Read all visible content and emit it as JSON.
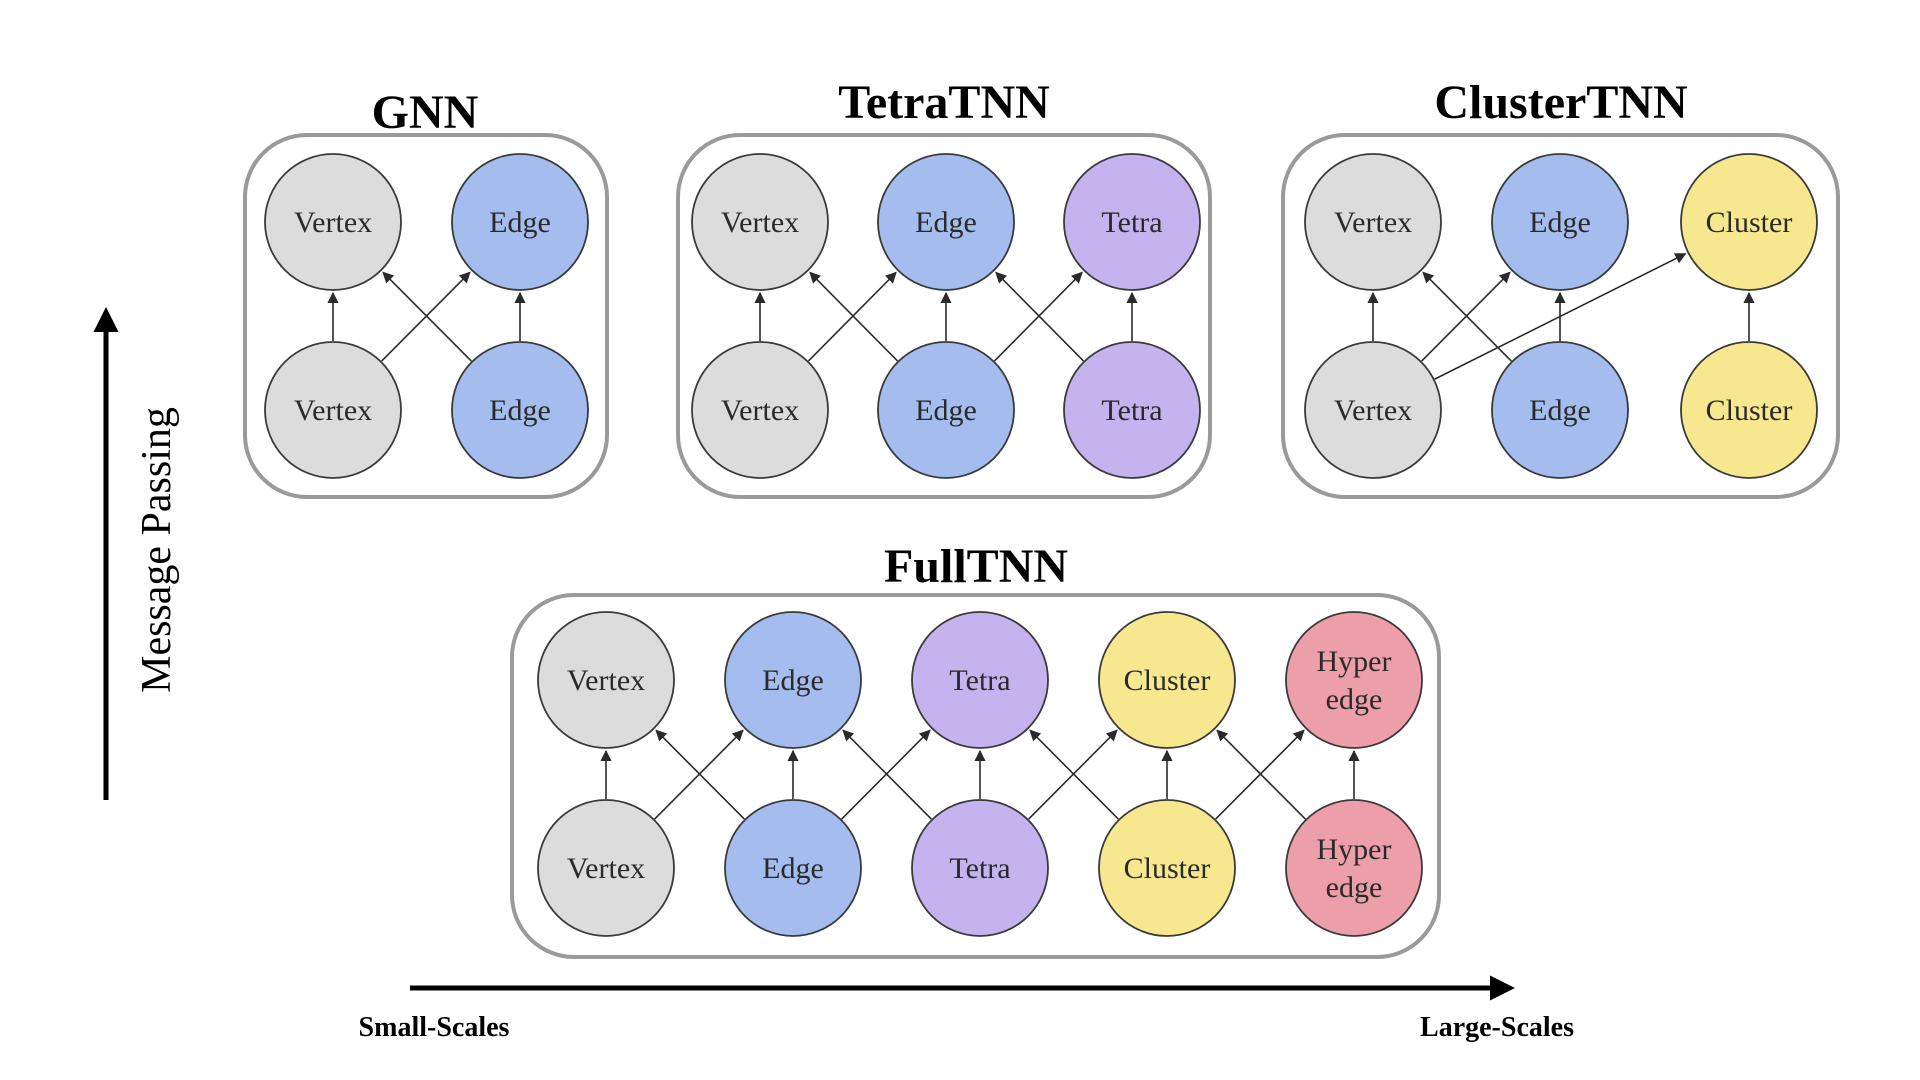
{
  "colors": {
    "Vertex": "#dcdcdc",
    "Edge": "#a4bcee",
    "Tetra": "#c4b3ee",
    "Cluster": "#f7e890",
    "Hyperedge": "#ec9fa8",
    "panel_border": "#9a9a9a",
    "arrow": "#2a2a2a"
  },
  "axes": {
    "y_label": "Message Passing",
    "x_left_label": "Small-Scales",
    "x_right_label": "Large-Scales"
  },
  "panels": [
    {
      "id": "gnn",
      "title": "GNN",
      "nodes": [
        {
          "id": "v_top",
          "type": "Vertex",
          "label": [
            "Vertex"
          ]
        },
        {
          "id": "e_top",
          "type": "Edge",
          "label": [
            "Edge"
          ]
        },
        {
          "id": "v_bot",
          "type": "Vertex",
          "label": [
            "Vertex"
          ]
        },
        {
          "id": "e_bot",
          "type": "Edge",
          "label": [
            "Edge"
          ]
        }
      ],
      "edges": [
        [
          "v_bot",
          "v_top"
        ],
        [
          "e_bot",
          "e_top"
        ],
        [
          "v_bot",
          "e_top"
        ],
        [
          "e_bot",
          "v_top"
        ]
      ]
    },
    {
      "id": "tetratnn",
      "title": "TetraTNN",
      "nodes": [
        {
          "id": "v_top",
          "type": "Vertex",
          "label": [
            "Vertex"
          ]
        },
        {
          "id": "e_top",
          "type": "Edge",
          "label": [
            "Edge"
          ]
        },
        {
          "id": "t_top",
          "type": "Tetra",
          "label": [
            "Tetra"
          ]
        },
        {
          "id": "v_bot",
          "type": "Vertex",
          "label": [
            "Vertex"
          ]
        },
        {
          "id": "e_bot",
          "type": "Edge",
          "label": [
            "Edge"
          ]
        },
        {
          "id": "t_bot",
          "type": "Tetra",
          "label": [
            "Tetra"
          ]
        }
      ],
      "edges": [
        [
          "v_bot",
          "v_top"
        ],
        [
          "e_bot",
          "e_top"
        ],
        [
          "t_bot",
          "t_top"
        ],
        [
          "v_bot",
          "e_top"
        ],
        [
          "e_bot",
          "v_top"
        ],
        [
          "e_bot",
          "t_top"
        ],
        [
          "t_bot",
          "e_top"
        ]
      ]
    },
    {
      "id": "clustertnn",
      "title": "ClusterTNN",
      "nodes": [
        {
          "id": "v_top",
          "type": "Vertex",
          "label": [
            "Vertex"
          ]
        },
        {
          "id": "e_top",
          "type": "Edge",
          "label": [
            "Edge"
          ]
        },
        {
          "id": "c_top",
          "type": "Cluster",
          "label": [
            "Cluster"
          ]
        },
        {
          "id": "v_bot",
          "type": "Vertex",
          "label": [
            "Vertex"
          ]
        },
        {
          "id": "e_bot",
          "type": "Edge",
          "label": [
            "Edge"
          ]
        },
        {
          "id": "c_bot",
          "type": "Cluster",
          "label": [
            "Cluster"
          ]
        }
      ],
      "edges": [
        [
          "v_bot",
          "v_top"
        ],
        [
          "e_bot",
          "e_top"
        ],
        [
          "c_bot",
          "c_top"
        ],
        [
          "v_bot",
          "e_top"
        ],
        [
          "e_bot",
          "v_top"
        ],
        [
          "v_bot",
          "c_top"
        ]
      ]
    },
    {
      "id": "fulltnn",
      "title": "FullTNN",
      "nodes": [
        {
          "id": "v_top",
          "type": "Vertex",
          "label": [
            "Vertex"
          ]
        },
        {
          "id": "e_top",
          "type": "Edge",
          "label": [
            "Edge"
          ]
        },
        {
          "id": "t_top",
          "type": "Tetra",
          "label": [
            "Tetra"
          ]
        },
        {
          "id": "c_top",
          "type": "Cluster",
          "label": [
            "Cluster"
          ]
        },
        {
          "id": "h_top",
          "type": "Hyperedge",
          "label": [
            "Hyper",
            "edge"
          ]
        },
        {
          "id": "v_bot",
          "type": "Vertex",
          "label": [
            "Vertex"
          ]
        },
        {
          "id": "e_bot",
          "type": "Edge",
          "label": [
            "Edge"
          ]
        },
        {
          "id": "t_bot",
          "type": "Tetra",
          "label": [
            "Tetra"
          ]
        },
        {
          "id": "c_bot",
          "type": "Cluster",
          "label": [
            "Cluster"
          ]
        },
        {
          "id": "h_bot",
          "type": "Hyperedge",
          "label": [
            "Hyper",
            "edge"
          ]
        }
      ],
      "edges": [
        [
          "v_bot",
          "v_top"
        ],
        [
          "e_bot",
          "e_top"
        ],
        [
          "t_bot",
          "t_top"
        ],
        [
          "c_bot",
          "c_top"
        ],
        [
          "h_bot",
          "h_top"
        ],
        [
          "v_bot",
          "e_top"
        ],
        [
          "e_bot",
          "v_top"
        ],
        [
          "e_bot",
          "t_top"
        ],
        [
          "t_bot",
          "e_top"
        ],
        [
          "t_bot",
          "c_top"
        ],
        [
          "c_bot",
          "t_top"
        ],
        [
          "c_bot",
          "h_top"
        ],
        [
          "h_bot",
          "c_top"
        ]
      ]
    }
  ]
}
